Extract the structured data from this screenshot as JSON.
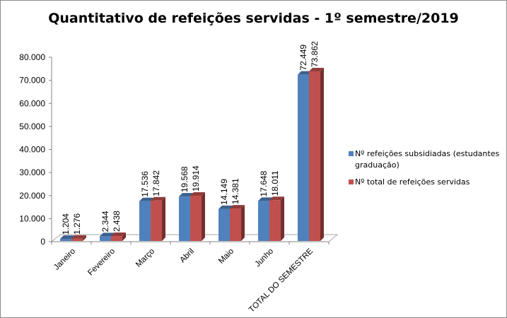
{
  "chart_data": {
    "type": "bar",
    "title": "Quantitativo de refeições servidas - 1º semestre/2019",
    "categories": [
      "Janeiro",
      "Fevereiro",
      "Março",
      "Abril",
      "Maio",
      "Junho",
      "TOTAL DO SEMESTRE"
    ],
    "series": [
      {
        "name": "Nº refeições subsidiadas (estudantes graduação)",
        "color": "#4F81BD",
        "values": [
          1204,
          2344,
          17536,
          19568,
          14149,
          17648,
          72449
        ],
        "labels": [
          "1.204",
          "2.344",
          "17.536",
          "19.568",
          "14.149",
          "17.648",
          "72.449"
        ]
      },
      {
        "name": "Nº total  de refeições servidas",
        "color": "#C0504D",
        "values": [
          1276,
          2438,
          17842,
          19914,
          14381,
          18011,
          73862
        ],
        "labels": [
          "1.276",
          "2.438",
          "17.842",
          "19.914",
          "14.381",
          "18.011",
          "73.862"
        ]
      }
    ],
    "ylim": [
      0,
      80000
    ],
    "yticks": [
      0,
      10000,
      20000,
      30000,
      40000,
      50000,
      60000,
      70000,
      80000
    ],
    "ytick_labels": [
      "0",
      "10.000",
      "20.000",
      "30.000",
      "40.000",
      "50.000",
      "60.000",
      "70.000",
      "80.000"
    ],
    "xlabel": "",
    "ylabel": "",
    "grid": false,
    "legend": "right",
    "style": "3d-clustered-column"
  }
}
